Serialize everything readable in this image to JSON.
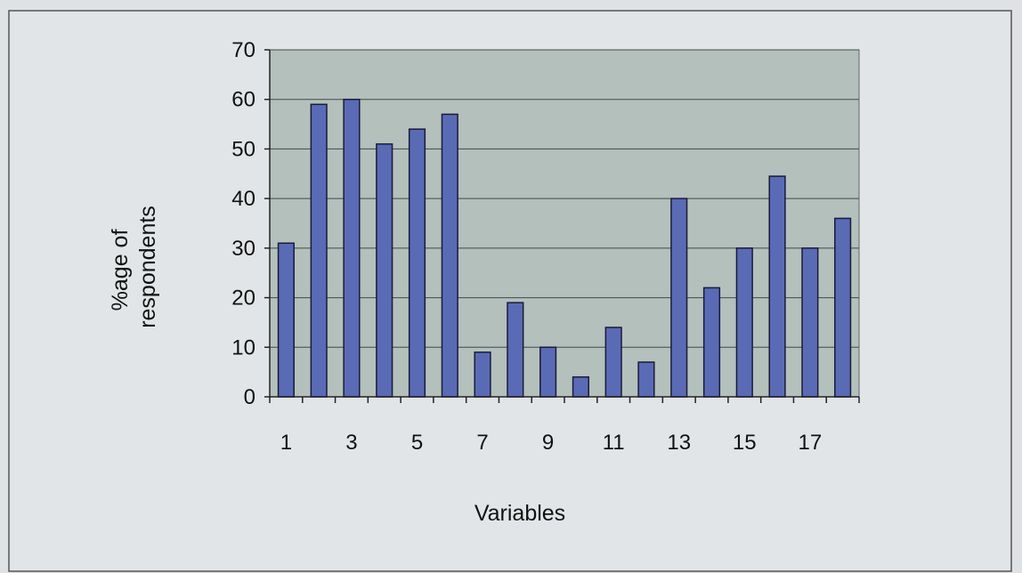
{
  "chart_data": {
    "type": "bar",
    "title": "",
    "xlabel": "Variables",
    "ylabel_lines": [
      "%age of",
      "respondents"
    ],
    "categories": [
      "1",
      "2",
      "3",
      "4",
      "5",
      "6",
      "7",
      "8",
      "9",
      "10",
      "11",
      "12",
      "13",
      "14",
      "15",
      "16",
      "17",
      "18"
    ],
    "x_tick_labels_shown": [
      "1",
      "3",
      "5",
      "7",
      "9",
      "11",
      "13",
      "15",
      "17"
    ],
    "values": [
      31,
      59,
      60,
      51,
      54,
      57,
      9,
      19,
      10,
      4,
      14,
      7,
      40,
      22,
      30,
      44.5,
      30,
      36
    ],
    "ylim": [
      0,
      70
    ],
    "y_ticks": [
      0,
      10,
      20,
      30,
      40,
      50,
      60,
      70
    ],
    "grid": true,
    "legend": "none",
    "colors": {
      "bar_fill": "#5a6bb5",
      "bar_stroke": "#1a1a3a",
      "plot_background": "#b3c0bc",
      "gridline": "#3f4a48",
      "chart_background": "#e2e5e7"
    }
  }
}
